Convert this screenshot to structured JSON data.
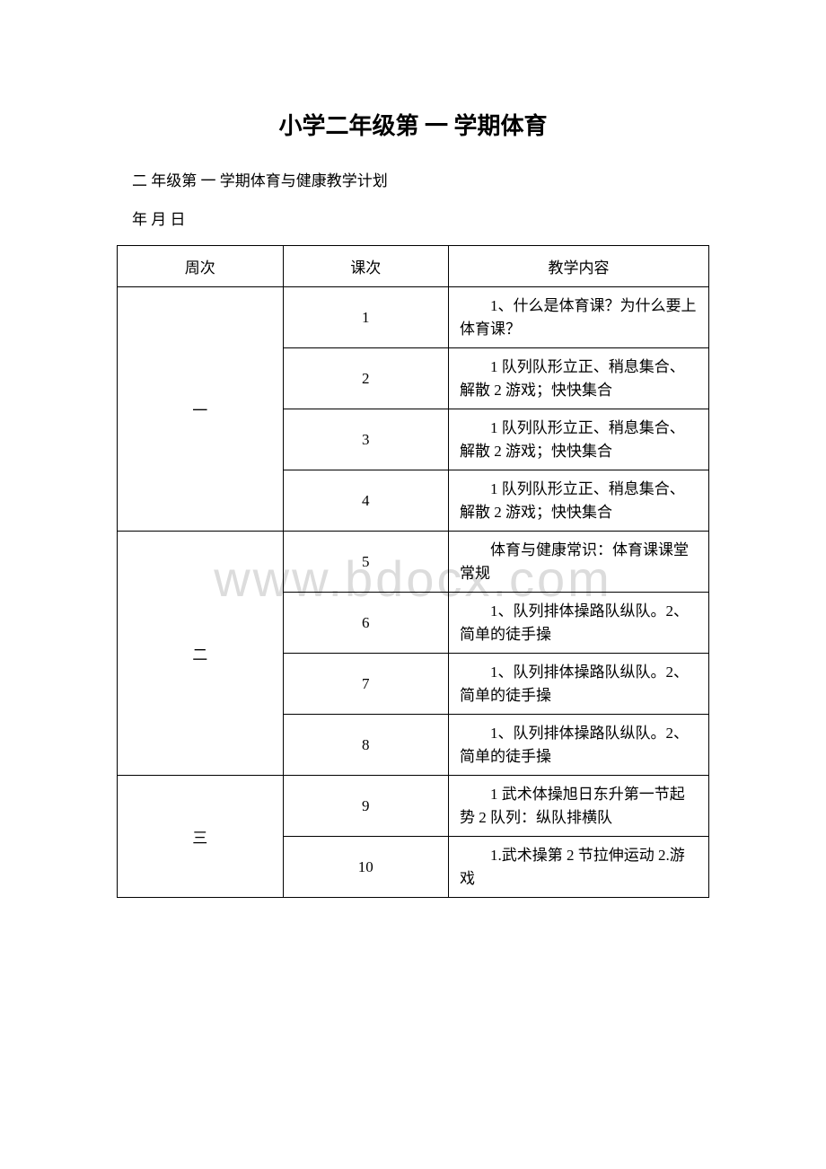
{
  "title": "小学二年级第 一 学期体育",
  "subtitle": "二 年级第 一 学期体育与健康教学计划",
  "date_line": "年 月 日",
  "watermark": "www.bdocx.com",
  "table": {
    "headers": {
      "week": "周次",
      "lesson": "课次",
      "content": "教学内容"
    },
    "rows": [
      {
        "week": "一",
        "week_rowspan": 4,
        "lesson": "1",
        "content": "1、什么是体育课？为什么要上体育课？"
      },
      {
        "lesson": "2",
        "content": "1 队列队形立正、稍息集合、解散 2 游戏；快快集合"
      },
      {
        "lesson": "3",
        "content": "1 队列队形立正、稍息集合、解散 2 游戏；快快集合"
      },
      {
        "lesson": "4",
        "content": "1 队列队形立正、稍息集合、解散 2 游戏；快快集合"
      },
      {
        "week": "二",
        "week_rowspan": 4,
        "lesson": "5",
        "content": "体育与健康常识：体育课课堂常规"
      },
      {
        "lesson": "6",
        "content": "1、队列排体操路队纵队。2、简单的徒手操"
      },
      {
        "lesson": "7",
        "content": "1、队列排体操路队纵队。2、简单的徒手操"
      },
      {
        "lesson": "8",
        "content": "1、队列排体操路队纵队。2、简单的徒手操"
      },
      {
        "week": "三",
        "week_rowspan": 2,
        "lesson": "9",
        "content": "1 武术体操旭日东升第一节起势 2 队列：纵队排横队"
      },
      {
        "lesson": "10",
        "content": "1.武术操第 2 节拉伸运动 2.游戏"
      }
    ]
  },
  "colors": {
    "text": "#000000",
    "border": "#000000",
    "background": "#ffffff",
    "watermark": "#dcdcdc"
  },
  "typography": {
    "title_fontsize": 26,
    "body_fontsize": 17,
    "watermark_fontsize": 56,
    "font_family": "SimSun"
  }
}
